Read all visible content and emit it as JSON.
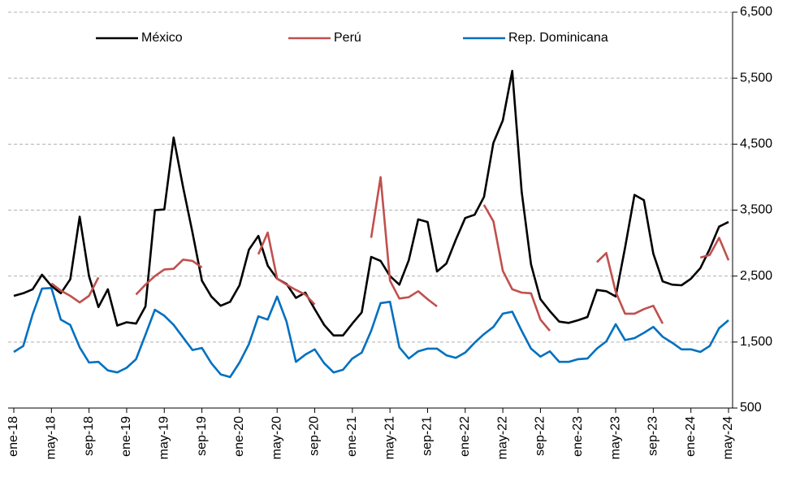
{
  "chart_data": {
    "type": "line",
    "categories": [
      "ene-18",
      null,
      null,
      null,
      "may-18",
      null,
      null,
      null,
      "sep-18",
      null,
      null,
      null,
      "ene-19",
      null,
      null,
      null,
      "may-19",
      null,
      null,
      null,
      "sep-19",
      null,
      null,
      null,
      "ene-20",
      null,
      null,
      null,
      "may-20",
      null,
      null,
      null,
      "sep-20",
      null,
      null,
      null,
      "ene-21",
      null,
      null,
      null,
      "may-21",
      null,
      null,
      null,
      "sep-21",
      null,
      null,
      null,
      "ene-22",
      null,
      null,
      null,
      "may-22",
      null,
      null,
      null,
      "sep-22",
      null,
      null,
      null,
      "ene-23",
      null,
      null,
      null,
      "may-23",
      null,
      null,
      null,
      "sep-23",
      null,
      null,
      null,
      "ene-24",
      null,
      null,
      null,
      "may-24"
    ],
    "series": [
      {
        "name": "México",
        "color": "#000000",
        "values": [
          2200,
          2240,
          2300,
          2520,
          2350,
          2240,
          2450,
          3400,
          2500,
          2030,
          2300,
          1750,
          1800,
          1780,
          2040,
          3500,
          3510,
          4600,
          3850,
          3160,
          2430,
          2190,
          2050,
          2110,
          2360,
          2900,
          3110,
          2660,
          2460,
          2380,
          2170,
          2250,
          2000,
          1760,
          1600,
          1600,
          1780,
          1950,
          2790,
          2730,
          2500,
          2370,
          2740,
          3360,
          3320,
          2570,
          2690,
          3050,
          3380,
          3430,
          3700,
          4520,
          4860,
          5610,
          3780,
          2680,
          2150,
          1970,
          1810,
          1790,
          1830,
          1880,
          2290,
          2270,
          2190,
          2930,
          3730,
          3650,
          2840,
          2420,
          2370,
          2360,
          2460,
          2620,
          2910,
          3250,
          3320
        ]
      },
      {
        "name": "Perú",
        "color": "#c0504d",
        "values": [
          null,
          null,
          null,
          null,
          2390,
          2280,
          2200,
          2100,
          2200,
          2480,
          null,
          null,
          null,
          2220,
          2370,
          2500,
          2600,
          2610,
          2750,
          2730,
          2630,
          null,
          null,
          null,
          null,
          null,
          2830,
          3160,
          2460,
          2370,
          2290,
          2220,
          2070,
          null,
          null,
          null,
          null,
          null,
          3080,
          4000,
          2430,
          2160,
          2180,
          2270,
          2150,
          2040,
          null,
          null,
          null,
          null,
          3580,
          3330,
          2580,
          2300,
          2250,
          2240,
          1840,
          1670,
          null,
          null,
          null,
          null,
          2710,
          2850,
          2260,
          1930,
          1930,
          2000,
          2050,
          1780,
          null,
          null,
          null,
          2780,
          2820,
          3080,
          2740
        ]
      },
      {
        "name": "Rep. Dominicana",
        "color": "#0070c0",
        "values": [
          1350,
          1440,
          1920,
          2310,
          2320,
          1840,
          1760,
          1420,
          1190,
          1200,
          1070,
          1040,
          1110,
          1240,
          1610,
          1990,
          1900,
          1760,
          1570,
          1380,
          1410,
          1180,
          1010,
          970,
          1190,
          1470,
          1890,
          1840,
          2190,
          1810,
          1200,
          1310,
          1390,
          1180,
          1040,
          1080,
          1250,
          1340,
          1670,
          2090,
          2110,
          1420,
          1250,
          1360,
          1400,
          1400,
          1300,
          1260,
          1340,
          1490,
          1620,
          1730,
          1930,
          1960,
          1670,
          1400,
          1280,
          1360,
          1200,
          1200,
          1240,
          1250,
          1400,
          1510,
          1770,
          1530,
          1560,
          1640,
          1730,
          1580,
          1490,
          1390,
          1390,
          1350,
          1440,
          1710,
          1830
        ]
      }
    ],
    "ylim": [
      500,
      6500
    ],
    "yticks": [
      500,
      {
        "value": 1500,
        "label": "1,500"
      },
      {
        "value": 2500,
        "label": "2,500"
      },
      {
        "value": 3500,
        "label": "3,500"
      },
      {
        "value": 4500,
        "label": "4,500"
      },
      {
        "value": 5500,
        "label": "5,500"
      },
      {
        "value": 6500,
        "label": "6,500"
      }
    ],
    "grid": true,
    "legend": "top"
  }
}
